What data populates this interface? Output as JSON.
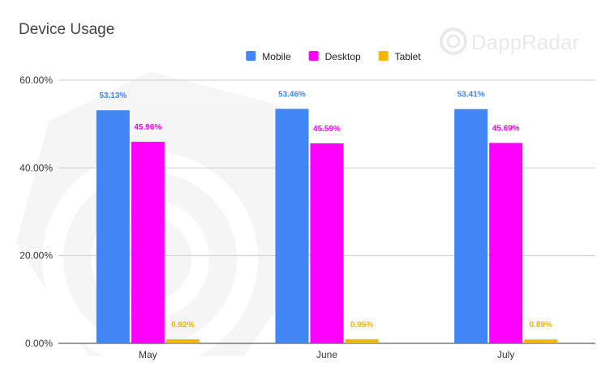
{
  "watermark": {
    "brand": "DappRadar"
  },
  "chart_data": {
    "type": "bar",
    "title": "Device Usage",
    "categories": [
      "May",
      "June",
      "July"
    ],
    "series": [
      {
        "name": "Mobile",
        "color": "#4285f4",
        "values": [
          53.13,
          53.46,
          53.41
        ],
        "labels": [
          "53.13%",
          "53.46%",
          "53.41%"
        ]
      },
      {
        "name": "Desktop",
        "color": "#ff00ff",
        "values": [
          45.96,
          45.59,
          45.69
        ],
        "labels": [
          "45.96%",
          "45.59%",
          "45.69%"
        ]
      },
      {
        "name": "Tablet",
        "color": "#f4b400",
        "values": [
          0.92,
          0.95,
          0.89
        ],
        "labels": [
          "0.92%",
          "0.95%",
          "0.89%"
        ]
      }
    ],
    "ylim": [
      0,
      60
    ],
    "yticks": [
      {
        "value": 0,
        "label": "0.00%"
      },
      {
        "value": 20,
        "label": "20.00%"
      },
      {
        "value": 40,
        "label": "40.00%"
      },
      {
        "value": 60,
        "label": "60.00%"
      }
    ],
    "xlabel": "",
    "ylabel": "",
    "grid": true,
    "legend": "top-center"
  }
}
